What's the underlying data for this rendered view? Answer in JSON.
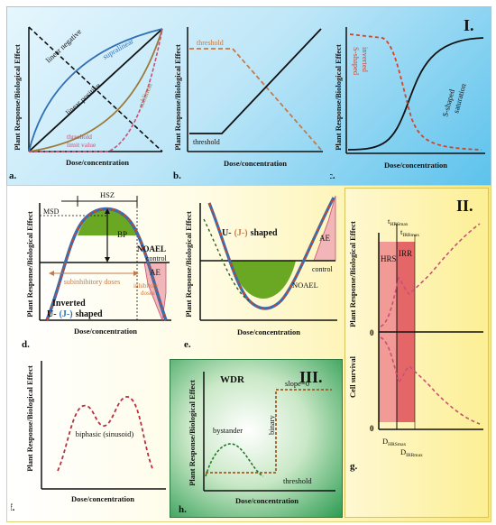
{
  "sections": {
    "I": "I.",
    "II": "II.",
    "III": "III."
  },
  "axes": {
    "y_label": "Plant Response/Biological Effect",
    "x_label": "Dose/concentration",
    "cell_survival": "Cell survival"
  },
  "panels": {
    "a": {
      "letter": "a.",
      "linear_negative": "linear negative",
      "supralinear": "supralinear",
      "linear_positive": "linear positive",
      "sublinear": "sublinear",
      "threshold_limit_1": "threshold",
      "threshold_limit_2": "limit value"
    },
    "b": {
      "letter": "b.",
      "threshold_top": "threshold",
      "threshold_bottom": "threshold"
    },
    "c": {
      "letter": "c.",
      "inverted_1": "inverted",
      "inverted_2": "S-shaped",
      "s_shaped_1": "S-shaped",
      "s_shaped_2": "saturation"
    },
    "d": {
      "letter": "d.",
      "hsz": "HSZ",
      "msd": "MSD",
      "bp": "BP",
      "noael": "NOAEL",
      "control": "control",
      "ae": "AE",
      "subinhibitory": "subinhibitory doses",
      "inhibitory_1": "inhibitory",
      "inhibitory_2": "doses",
      "inverted": "Inverted",
      "shape_u": "U-",
      "shape_j": "(J-)",
      "shape_end": "shaped"
    },
    "e": {
      "letter": "e.",
      "shape_u": "U-",
      "shape_j": "(J-)",
      "shape_end": "shaped",
      "ae": "AE",
      "control": "control",
      "noael": "NOAEL"
    },
    "f": {
      "letter": "f.",
      "biphasic": "biphasic (sinusoid)"
    },
    "g": {
      "letter": "g.",
      "t_hrs": "t",
      "t_hrs_sub": "HRSmax",
      "t_irr": "t",
      "t_irr_sub": "IRRmax",
      "hrs": "HRS",
      "irr": "IRR",
      "zero_top": "0",
      "zero_bottom": "0",
      "d_hrs": "D",
      "d_hrs_sub": "HRSmax",
      "d_irr": "D",
      "d_irr_sub": "IRRmax"
    },
    "h": {
      "letter": "h.",
      "wdr": "WDR",
      "slope": "slope=0",
      "bystander": "bystander",
      "binary": "binary",
      "threshold": "threshold"
    }
  },
  "colors": {
    "blue": "#2e6fb5",
    "red_dash": "#d0442a",
    "pink_dash": "#c94f77",
    "green_fill": "#6aa722",
    "green_dark": "#1f7a2a"
  }
}
